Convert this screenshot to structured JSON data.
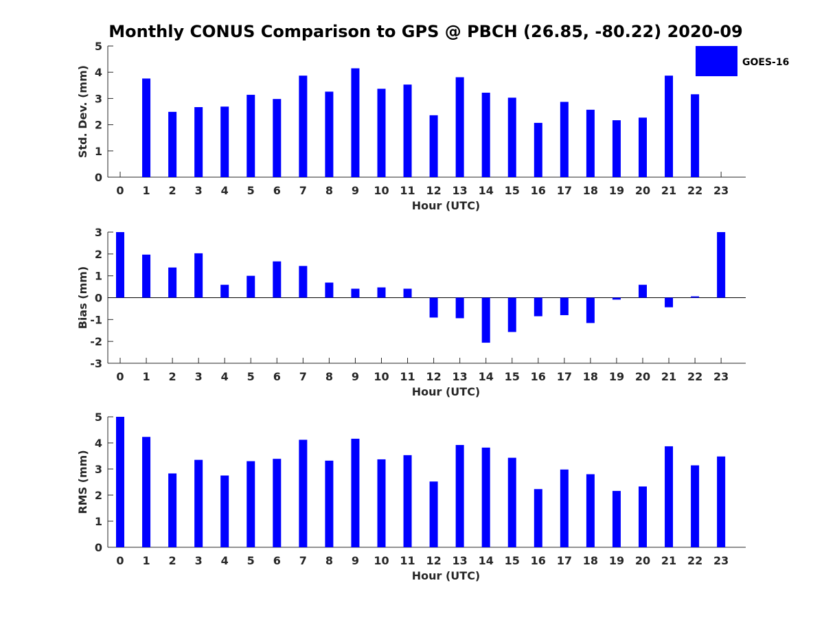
{
  "chart_data": {
    "title": "Monthly CONUS Comparison to GPS @ PBCH (26.85, -80.22) 2020-09",
    "legend": {
      "label": "GOES-16",
      "placement": "top-right",
      "color": "#0000ff"
    },
    "categories": [
      "0",
      "1",
      "2",
      "3",
      "4",
      "5",
      "6",
      "7",
      "8",
      "9",
      "10",
      "11",
      "12",
      "13",
      "14",
      "15",
      "16",
      "17",
      "18",
      "19",
      "20",
      "21",
      "22",
      "23"
    ],
    "panels": [
      {
        "type": "bar",
        "xlabel": "Hour (UTC)",
        "ylabel": "Std. Dev. (mm)",
        "ylim": [
          0,
          5
        ],
        "yticks": [
          "0",
          "1",
          "2",
          "3",
          "4",
          "5"
        ],
        "series": [
          {
            "name": "GOES-16",
            "values": [
              0,
              3.76,
              2.49,
              2.67,
              2.69,
              3.14,
              2.98,
              3.87,
              3.26,
              4.15,
              3.37,
              3.53,
              2.36,
              3.81,
              3.22,
              3.03,
              2.07,
              2.87,
              2.57,
              2.17,
              2.27,
              3.87,
              3.16,
              0
            ]
          }
        ]
      },
      {
        "type": "bar",
        "xlabel": "Hour (UTC)",
        "ylabel": "Bias (mm)",
        "ylim": [
          -3,
          3
        ],
        "yticks": [
          "-3",
          "-2",
          "-1",
          "0",
          "1",
          "2",
          "3"
        ],
        "series": [
          {
            "name": "GOES-16",
            "values": [
              3.0,
              1.97,
              1.38,
              2.03,
              0.59,
              1.0,
              1.66,
              1.45,
              0.69,
              0.41,
              0.47,
              0.41,
              -0.91,
              -0.94,
              -2.06,
              -1.57,
              -0.85,
              -0.8,
              -1.16,
              -0.09,
              0.59,
              -0.44,
              0.06,
              3.0
            ]
          }
        ]
      },
      {
        "type": "bar",
        "xlabel": "Hour (UTC)",
        "ylabel": "RMS (mm)",
        "ylim": [
          0,
          5
        ],
        "yticks": [
          "0",
          "1",
          "2",
          "3",
          "4",
          "5"
        ],
        "series": [
          {
            "name": "GOES-16",
            "values": [
              5.0,
              4.23,
              2.83,
              3.35,
              2.75,
              3.3,
              3.39,
              4.12,
              3.32,
              4.16,
              3.37,
              3.53,
              2.52,
              3.92,
              3.82,
              3.43,
              2.23,
              2.98,
              2.8,
              2.16,
              2.33,
              3.87,
              3.14,
              3.48
            ]
          }
        ]
      }
    ]
  }
}
